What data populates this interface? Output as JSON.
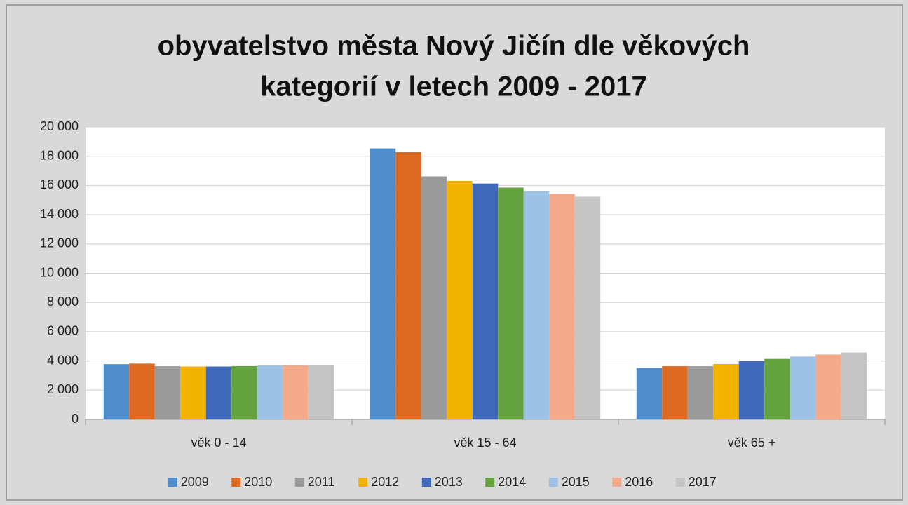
{
  "chart_data": {
    "type": "bar",
    "title": [
      "obyvatelstvo města Nový Jičín dle věkových",
      "kategorií v letech 2009 - 2017"
    ],
    "categories": [
      "věk 0 - 14",
      "věk 15 - 64",
      "věk 65 +"
    ],
    "series": [
      {
        "name": "2009",
        "color": "#4f8ccc",
        "values": [
          3780,
          18530,
          3520
        ]
      },
      {
        "name": "2010",
        "color": "#dc6a22",
        "values": [
          3820,
          18280,
          3640
        ]
      },
      {
        "name": "2011",
        "color": "#9a9a9a",
        "values": [
          3640,
          16620,
          3640
        ]
      },
      {
        "name": "2012",
        "color": "#f2b200",
        "values": [
          3620,
          16310,
          3790
        ]
      },
      {
        "name": "2013",
        "color": "#3f69b8",
        "values": [
          3620,
          16130,
          3980
        ]
      },
      {
        "name": "2014",
        "color": "#64a13f",
        "values": [
          3650,
          15850,
          4140
        ]
      },
      {
        "name": "2015",
        "color": "#9ec1e6",
        "values": [
          3690,
          15600,
          4300
        ]
      },
      {
        "name": "2016",
        "color": "#f3a98a",
        "values": [
          3710,
          15420,
          4440
        ]
      },
      {
        "name": "2017",
        "color": "#c5c5c5",
        "values": [
          3740,
          15230,
          4580
        ]
      }
    ],
    "ylim": [
      0,
      20000
    ],
    "yticks": [
      0,
      {
        "value": 2000,
        "label": "2 000"
      },
      {
        "value": 4000,
        "label": "4 000"
      },
      {
        "value": 6000,
        "label": "6 000"
      },
      {
        "value": 8000,
        "label": "8 000"
      },
      {
        "value": 10000,
        "label": "10 000"
      },
      {
        "value": 12000,
        "label": "12 000"
      },
      {
        "value": 14000,
        "label": "14 000"
      },
      {
        "value": 16000,
        "label": "16 000"
      },
      {
        "value": 18000,
        "label": "18 000"
      },
      {
        "value": 20000,
        "label": "20 000"
      }
    ],
    "grid": true
  }
}
